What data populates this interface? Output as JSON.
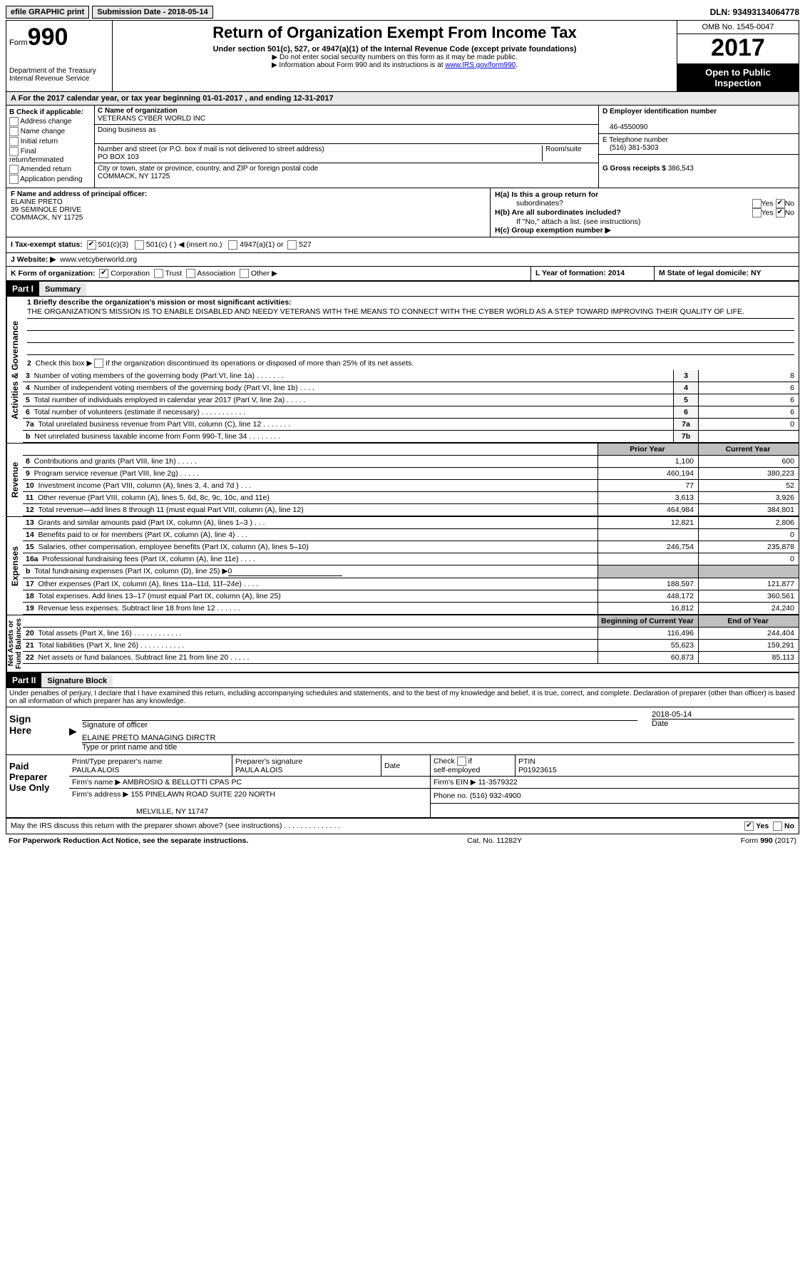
{
  "top": {
    "efile": "efile GRAPHIC print",
    "submission": "Submission Date - 2018-05-14",
    "dln": "DLN: 93493134064778"
  },
  "header": {
    "form_word": "Form",
    "form_num": "990",
    "dept": "Department of the Treasury",
    "irs": "Internal Revenue Service",
    "title": "Return of Organization Exempt From Income Tax",
    "subtitle": "Under section 501(c), 527, or 4947(a)(1) of the Internal Revenue Code (except private foundations)",
    "note1": "▶ Do not enter social security numbers on this form as it may be made public.",
    "note2_pre": "▶ Information about Form 990 and its instructions is at ",
    "note2_link": "www.IRS.gov/form990",
    "omb": "OMB No. 1545-0047",
    "year": "2017",
    "inspect1": "Open to Public",
    "inspect2": "Inspection"
  },
  "sectionA": "A   For the 2017 calendar year, or tax year beginning 01-01-2017    , and ending 12-31-2017",
  "B": {
    "title": "B Check if applicable:",
    "opts": [
      "Address change",
      "Name change",
      "Initial return",
      "Final return/terminated",
      "Amended return",
      "Application pending"
    ]
  },
  "C": {
    "label": "C Name of organization",
    "org": "VETERANS CYBER WORLD INC",
    "dba_label": "Doing business as",
    "street_label": "Number and street (or P.O. box if mail is not delivered to street address)",
    "room_label": "Room/suite",
    "street": "PO BOX 103",
    "city_label": "City or town, state or province, country, and ZIP or foreign postal code",
    "city": "COMMACK, NY  11725"
  },
  "D": {
    "label": "D Employer identification number",
    "val": "46-4550090"
  },
  "E": {
    "label": "E Telephone number",
    "val": "(516) 381-5303"
  },
  "G": {
    "label": "G Gross receipts $",
    "val": "386,543"
  },
  "F": {
    "label": "F Name and address of principal officer:",
    "name": "ELAINE PRETO",
    "addr1": "39 SEMINOLE DRIVE",
    "addr2": "COMMACK, NY  11725"
  },
  "H": {
    "a": "H(a)  Is this a group return for",
    "a2": "subordinates?",
    "b": "H(b)  Are all subordinates included?",
    "bnote": "If \"No,\" attach a list. (see instructions)",
    "c": "H(c)  Group exemption number ▶",
    "yes": "Yes",
    "no": "No"
  },
  "I": {
    "label": "I   Tax-exempt status:",
    "o1": "501(c)(3)",
    "o2": "501(c) (   ) ◀ (insert no.)",
    "o3": "4947(a)(1) or",
    "o4": "527"
  },
  "J": {
    "label": "J   Website: ▶",
    "val": "www.vetcyberworld.org"
  },
  "K": {
    "label": "K Form of organization:",
    "o1": "Corporation",
    "o2": "Trust",
    "o3": "Association",
    "o4": "Other ▶"
  },
  "L": {
    "label": "L Year of formation: 2014"
  },
  "M": {
    "label": "M State of legal domicile: NY"
  },
  "parts": {
    "p1": "Part I",
    "p1t": "Summary",
    "p2": "Part II",
    "p2t": "Signature Block"
  },
  "mission": {
    "q": "1   Briefly describe the organization's mission or most significant activities:",
    "text": "THE ORGANIZATION'S MISSION IS TO ENABLE DISABLED AND NEEDY VETERANS WITH THE MEANS TO CONNECT WITH THE CYBER WORLD AS A STEP TOWARD IMPROVING THEIR QUALITY OF LIFE."
  },
  "line2": "2   Check this box ▶       if the organization discontinued its operations or disposed of more than 25% of its net assets.",
  "vlabels": {
    "gov": "Activities & Governance",
    "rev": "Revenue",
    "exp": "Expenses",
    "net": "Net Assets or\nFund Balances"
  },
  "cols": {
    "prior": "Prior Year",
    "curr": "Current Year",
    "boy": "Beginning of Current Year",
    "eoy": "End of Year"
  },
  "gov": [
    {
      "n": "3",
      "t": "Number of voting members of the governing body (Part VI, line 1a)   .    .    .    .    .    .    .",
      "k": "3",
      "v": "8"
    },
    {
      "n": "4",
      "t": "Number of independent voting members of the governing body (Part VI, line 1b)   .    .    .    .",
      "k": "4",
      "v": "6"
    },
    {
      "n": "5",
      "t": "Total number of individuals employed in calendar year 2017 (Part V, line 2a)   .    .    .    .    .",
      "k": "5",
      "v": "6"
    },
    {
      "n": "6",
      "t": "Total number of volunteers (estimate if necessary)   .    .    .    .    .    .    .    .    .    .    .",
      "k": "6",
      "v": "6"
    },
    {
      "n": "7a",
      "t": "Total unrelated business revenue from Part VIII, column (C), line 12   .    .    .    .    .    .    .",
      "k": "7a",
      "v": "0"
    },
    {
      "n": "b",
      "t": "Net unrelated business taxable income from Form 990-T, line 34    .    .    .    .    .    .    .    .",
      "k": "7b",
      "v": ""
    }
  ],
  "rev": [
    {
      "n": "8",
      "t": "Contributions and grants (Part VIII, line 1h)    .    .    .    .    .",
      "p": "1,100",
      "c": "600"
    },
    {
      "n": "9",
      "t": "Program service revenue (Part VIII, line 2g)    .    .    .    .    .",
      "p": "460,194",
      "c": "380,223"
    },
    {
      "n": "10",
      "t": "Investment income (Part VIII, column (A), lines 3, 4, and 7d )    .    .    .",
      "p": "77",
      "c": "52"
    },
    {
      "n": "11",
      "t": "Other revenue (Part VIII, column (A), lines 5, 6d, 8c, 9c, 10c, and 11e)",
      "p": "3,613",
      "c": "3,926"
    },
    {
      "n": "12",
      "t": "Total revenue—add lines 8 through 11 (must equal Part VIII, column (A), line 12)",
      "p": "464,984",
      "c": "384,801"
    }
  ],
  "exp": [
    {
      "n": "13",
      "t": "Grants and similar amounts paid (Part IX, column (A), lines 1–3 )   .    .    .",
      "p": "12,821",
      "c": "2,806"
    },
    {
      "n": "14",
      "t": "Benefits paid to or for members (Part IX, column (A), line 4)    .    .    .",
      "p": "",
      "c": "0"
    },
    {
      "n": "15",
      "t": "Salaries, other compensation, employee benefits (Part IX, column (A), lines 5–10)",
      "p": "246,754",
      "c": "235,878"
    },
    {
      "n": "16a",
      "t": "Professional fundraising fees (Part IX, column (A), line 11e)    .    .    .    .",
      "p": "",
      "c": "0"
    },
    {
      "n": "b",
      "t": "Total fundraising expenses (Part IX, column (D), line 25) ▶0",
      "p": "SHADE",
      "c": "SHADE"
    },
    {
      "n": "17",
      "t": "Other expenses (Part IX, column (A), lines 11a–11d, 11f–24e)    .    .    .    .",
      "p": "188,597",
      "c": "121,877"
    },
    {
      "n": "18",
      "t": "Total expenses. Add lines 13–17 (must equal Part IX, column (A), line 25)",
      "p": "448,172",
      "c": "360,561"
    },
    {
      "n": "19",
      "t": "Revenue less expenses. Subtract line 18 from line 12    .    .    .    .    .    .",
      "p": "16,812",
      "c": "24,240"
    }
  ],
  "net": [
    {
      "n": "20",
      "t": "Total assets (Part X, line 16)  .    .    .    .    .    .    .    .    .    .    .    .",
      "p": "116,496",
      "c": "244,404"
    },
    {
      "n": "21",
      "t": "Total liabilities (Part X, line 26)  .    .    .    .    .    .    .    .    .    .    .",
      "p": "55,623",
      "c": "159,291"
    },
    {
      "n": "22",
      "t": "Net assets or fund balances. Subtract line 21 from line 20    .    .    .    .    .",
      "p": "60,873",
      "c": "85,113"
    }
  ],
  "penalties": "Under penalties of perjury, I declare that I have examined this return, including accompanying schedules and statements, and to the best of my knowledge and belief, it is true, correct, and complete. Declaration of preparer (other than officer) is based on all information of which preparer has any knowledge.",
  "sign": {
    "here": "Sign Here",
    "sig_label": "Signature of officer",
    "date_label": "Date",
    "date": "2018-05-14",
    "name": "ELAINE PRETO  MANAGING DIRCTR",
    "name_label": "Type or print name and title"
  },
  "paid": {
    "title": "Paid Preparer Use Only",
    "pname_label": "Print/Type preparer's name",
    "pname": "PAULA ALOIS",
    "psig_label": "Preparer's signature",
    "psig": "PAULA ALOIS",
    "pdate_label": "Date",
    "self": "Check        if self-employed",
    "ptin_label": "PTIN",
    "ptin": "P01923615",
    "firm_label": "Firm's name     ▶",
    "firm": "AMBROSIO & BELLOTTI CPAS PC",
    "ein_label": "Firm's EIN ▶",
    "ein": "11-3579322",
    "addr_label": "Firm's address ▶",
    "addr": "155 PINELAWN ROAD SUITE 220 NORTH",
    "addr2": "MELVILLE, NY  11747",
    "phone_label": "Phone no.",
    "phone": "(516) 932-4900"
  },
  "discuss": "May the IRS discuss this return with the preparer shown above? (see instructions)    .    .    .    .    .    .    .    .    .    .    .    .    .    .",
  "footer": {
    "l": "For Paperwork Reduction Act Notice, see the separate instructions.",
    "m": "Cat. No. 11282Y",
    "r": "Form 990 (2017)"
  }
}
